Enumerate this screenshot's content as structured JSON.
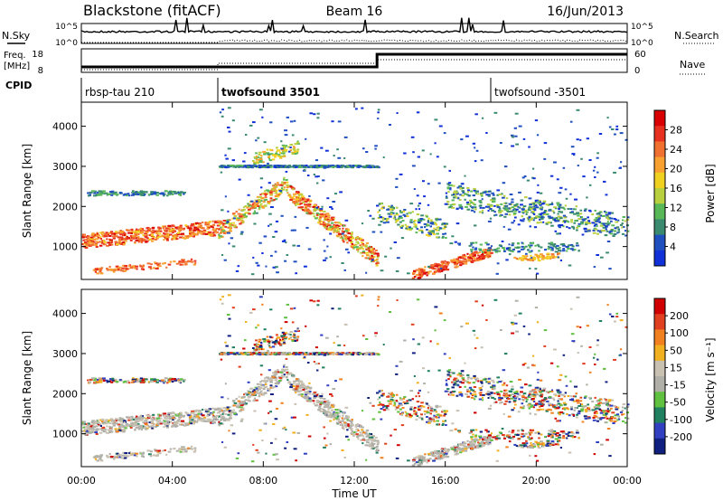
{
  "header": {
    "title": "Blackstone (fitACF)",
    "beam": "Beam 16",
    "date": "16/Jun/2013"
  },
  "top_panels": {
    "nsky_label": "N.Sky",
    "nsearch_label": "N.Search",
    "count_ticks": [
      "10^5",
      "10^0"
    ],
    "freq_label_1": "Freq.",
    "freq_label_2": "[MHz]",
    "freq_ticks": [
      "18",
      "8"
    ],
    "nave_label": "Nave",
    "nave_ticks": [
      "60",
      "0"
    ],
    "cpid_label": "CPID"
  },
  "cpid_segments": [
    {
      "start_h": 0,
      "label": "rbsp-tau 210"
    },
    {
      "start_h": 6,
      "label": "twofsound 3501"
    },
    {
      "start_h": 18,
      "label": "twofsound -3501"
    }
  ],
  "colors": {
    "power": [
      "#1030d8",
      "#2050c0",
      "#3a8a70",
      "#58b858",
      "#b8d040",
      "#f0d020",
      "#f8a030",
      "#f07030",
      "#e83020",
      "#d80000"
    ],
    "velocity": [
      "#102080",
      "#3040c0",
      "#208060",
      "#60c040",
      "#b0b0a8",
      "#c8c0b0",
      "#f0b020",
      "#f08020",
      "#e04020",
      "#d00000"
    ]
  },
  "chart_data": [
    {
      "type": "heatmap",
      "name": "power",
      "xlabel": "",
      "ylabel": "Slant Range [km]",
      "x_ticks": [
        "00:00",
        "04:00",
        "08:00",
        "12:00",
        "16:00",
        "20:00",
        "00:00"
      ],
      "y_ticks": [
        "1000",
        "2000",
        "3000",
        "4000"
      ],
      "xlim_hours": [
        0,
        24
      ],
      "ylim_km": [
        180,
        4600
      ],
      "colorbar_label": "Power [dB]",
      "colorbar_ticks": [
        "28",
        "24",
        "20",
        "16",
        "12",
        "8",
        "4"
      ],
      "colorbar_range": [
        0,
        32
      ]
    },
    {
      "type": "heatmap",
      "name": "velocity",
      "xlabel": "Time UT",
      "ylabel": "Slant Range [km]",
      "x_ticks": [
        "00:00",
        "04:00",
        "08:00",
        "12:00",
        "16:00",
        "20:00",
        "00:00"
      ],
      "y_ticks": [
        "1000",
        "2000",
        "3000",
        "4000"
      ],
      "xlim_hours": [
        0,
        24
      ],
      "ylim_km": [
        180,
        4600
      ],
      "colorbar_label": "Velocity [m s⁻¹]",
      "colorbar_ticks": [
        "200",
        "100",
        "50",
        "15",
        "-15",
        "-50",
        "-100",
        "-200"
      ]
    }
  ]
}
